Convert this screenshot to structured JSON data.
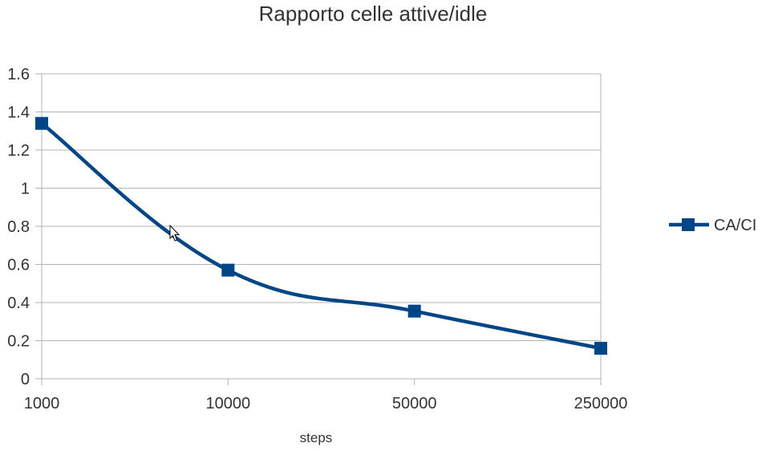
{
  "chart_data": {
    "type": "line",
    "title": "Rapporto celle attive/idle",
    "xlabel": "steps",
    "ylabel": "",
    "categories": [
      "1000",
      "10000",
      "50000",
      "250000"
    ],
    "series": [
      {
        "name": "CA/CI",
        "values": [
          1.34,
          0.57,
          0.355,
          0.16
        ],
        "color": "#004586",
        "marker": "square"
      }
    ],
    "ylim": [
      0,
      1.6
    ],
    "yticks": [
      "0",
      "0.2",
      "0.4",
      "0.6",
      "0.8",
      "1",
      "1.2",
      "1.4",
      "1.6"
    ],
    "grid": true,
    "smooth": true,
    "legend_position": "right"
  }
}
